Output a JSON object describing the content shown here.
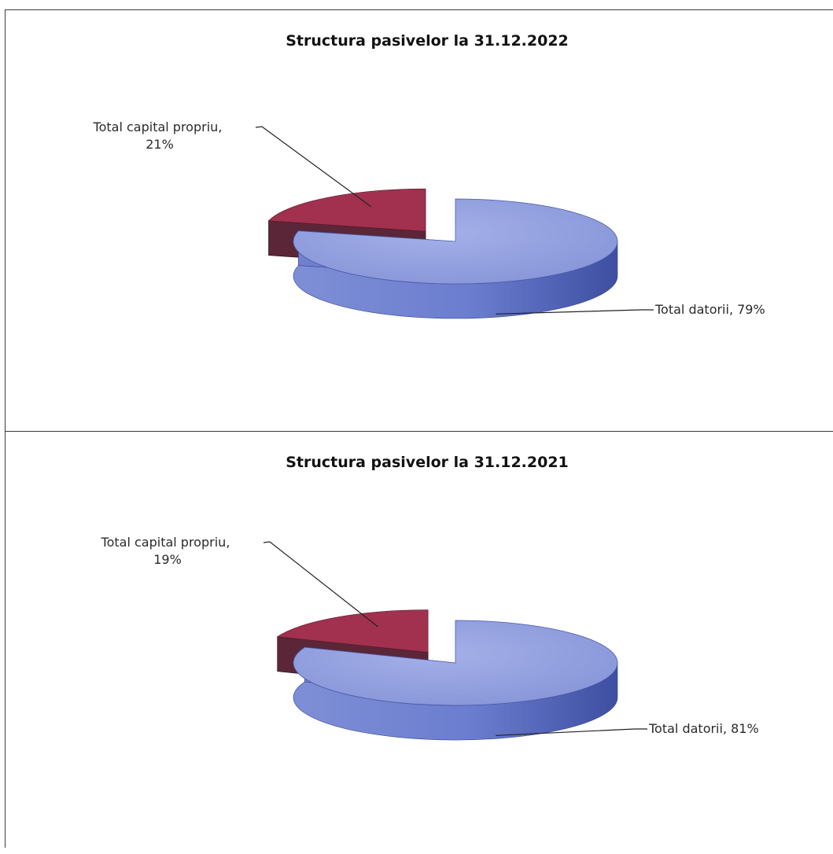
{
  "colors": {
    "datorii_top": "#8c9bdc",
    "datorii_side": "#5567b8",
    "capital_top": "#a1314f",
    "capital_side": "#4a2030",
    "border": "#3a3a3a"
  },
  "chart_data": [
    {
      "type": "pie",
      "style": "3d-exploded",
      "title": "Structura pasivelor la 31.12.2022",
      "categories": [
        "Total capital propriu",
        "Total datorii"
      ],
      "values": [
        21,
        79
      ],
      "unit": "%",
      "labels": [
        "Total capital propriu, 21%",
        "Total datorii, 79%"
      ],
      "label_lines": [
        [
          "Total capital propriu,",
          "21%"
        ],
        [
          "Total datorii, 79%"
        ]
      ],
      "legend": "none",
      "data_labels": "outside-with-leader-lines"
    },
    {
      "type": "pie",
      "style": "3d-exploded",
      "title": "Structura pasivelor la 31.12.2021",
      "categories": [
        "Total capital propriu",
        "Total datorii"
      ],
      "values": [
        19,
        81
      ],
      "unit": "%",
      "labels": [
        "Total capital propriu, 19%",
        "Total datorii, 81%"
      ],
      "label_lines": [
        [
          "Total capital propriu,",
          "19%"
        ],
        [
          "Total datorii, 81%"
        ]
      ],
      "legend": "none",
      "data_labels": "outside-with-leader-lines"
    }
  ]
}
